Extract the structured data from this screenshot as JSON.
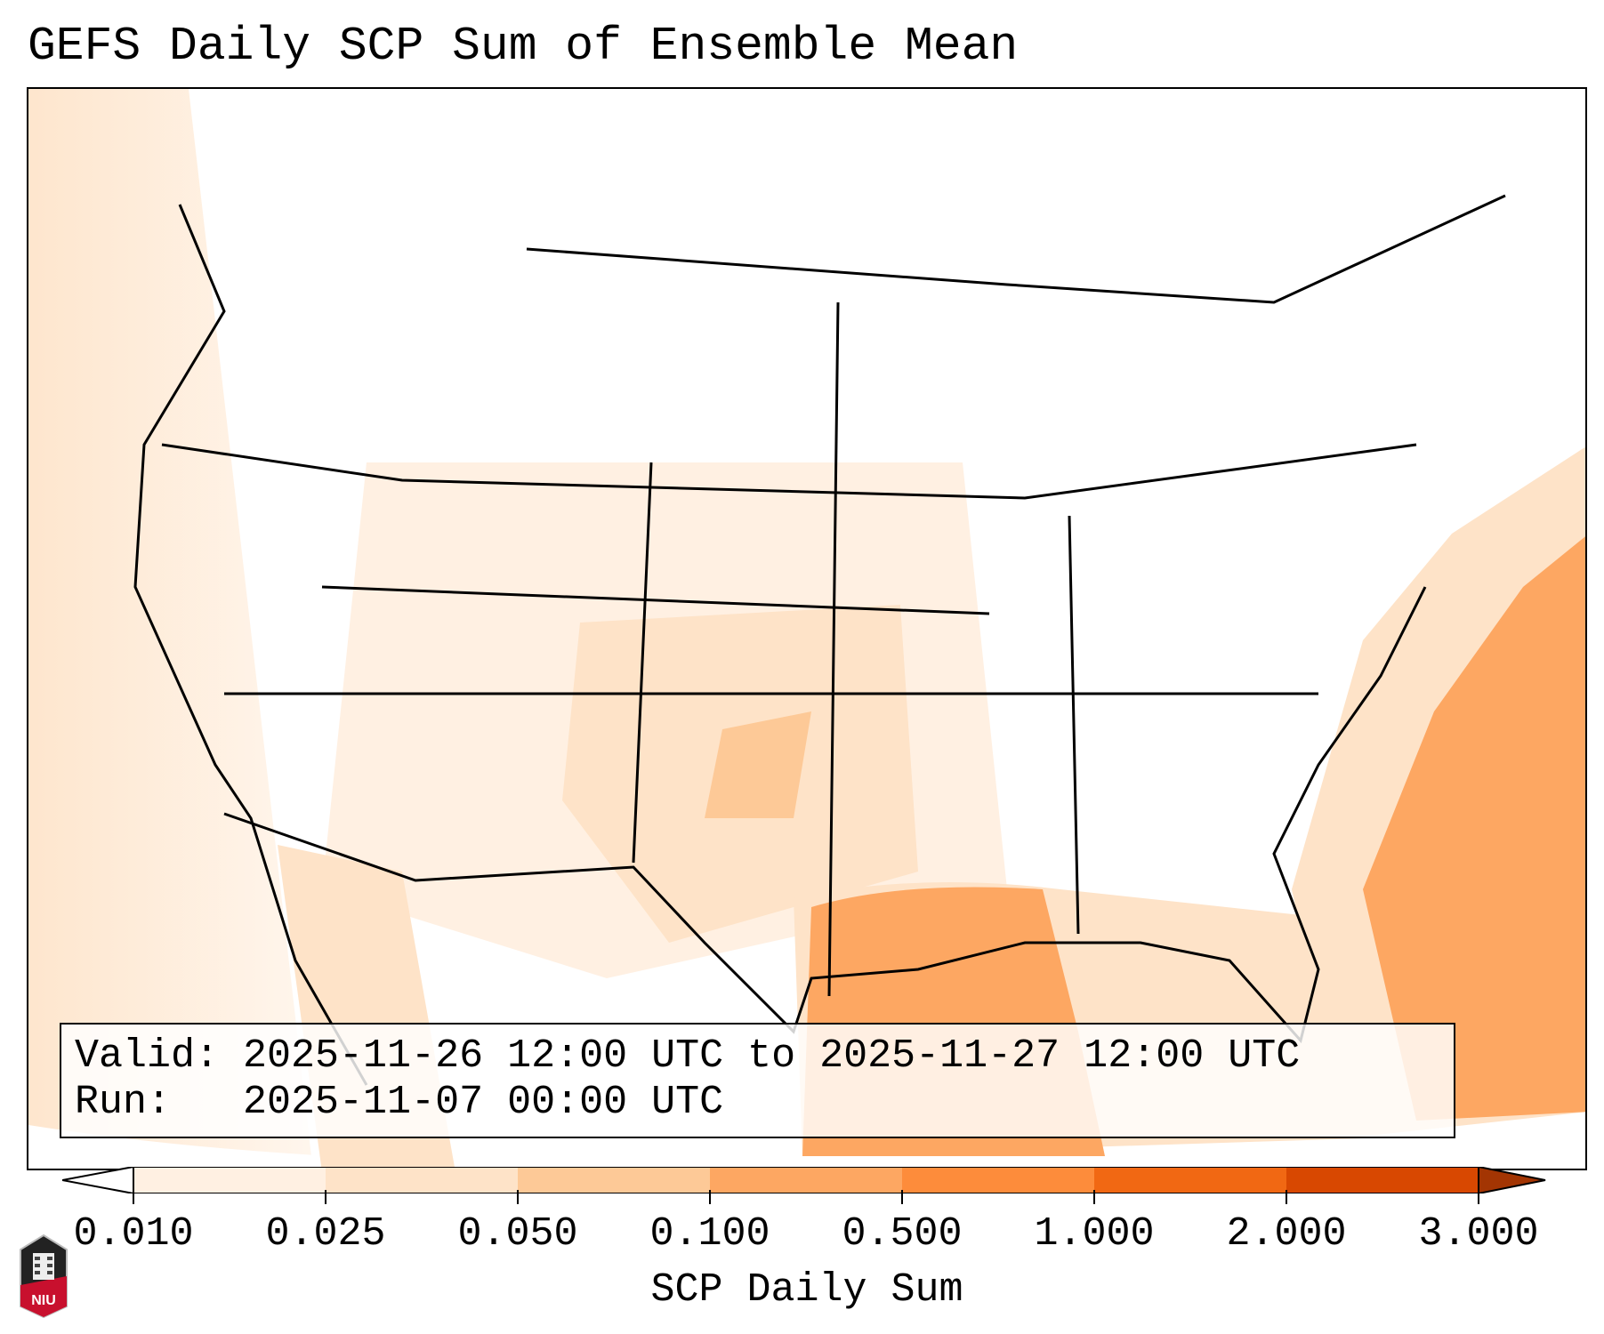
{
  "title": "GEFS Daily SCP Sum of Ensemble Mean",
  "info": {
    "valid_line": "Valid: 2025-11-26 12:00 UTC to 2025-11-27 12:00 UTC",
    "run_line": "Run:   2025-11-07 00:00 UTC"
  },
  "colorbar": {
    "label": "SCP Daily Sum",
    "ticks": [
      "0.010",
      "0.025",
      "0.050",
      "0.100",
      "0.500",
      "1.000",
      "2.000",
      "3.000"
    ],
    "under_color": "#ffffff",
    "bin_colors": [
      "#fff0e2",
      "#fee3c8",
      "#fdc997",
      "#fda762",
      "#fd8c3b",
      "#f16813",
      "#d84801"
    ],
    "over_color": "#a33503"
  },
  "logo": {
    "text": "NIU"
  }
}
